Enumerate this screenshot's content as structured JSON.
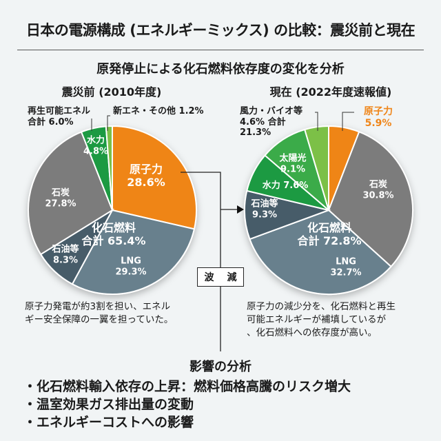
{
  "title": "日本の電源構成 (エネルギーミックス) の比較：震災前と現在",
  "subtitle": "原発停止による化石燃料依存度の変化を分析",
  "connector_label": [
    "波",
    "減"
  ],
  "chart_data": [
    {
      "type": "pie",
      "title": "震災前 (2010年度)",
      "slices": [
        {
          "name": "原子力",
          "value": 28.6,
          "color": "#ef8519"
        },
        {
          "name": "LNG",
          "value": 29.3,
          "color": "#68808d"
        },
        {
          "name": "石油等",
          "value": 8.3,
          "color": "#465b69"
        },
        {
          "name": "石炭",
          "value": 27.8,
          "color": "#7b7b7b"
        },
        {
          "name": "水力",
          "value": 4.8,
          "color": "#1f9a42"
        },
        {
          "name": "新エネ・その他",
          "value": 1.2,
          "color": "#7cc046"
        }
      ],
      "annotations": {
        "fossil": "化石燃料",
        "fossil_total": "合計 65.4%",
        "renew": "再生可能エネル",
        "renew_total": "合計 6.0%",
        "new_energy": "新エネ・その他 1.2%"
      },
      "labels": {
        "nuclear": "原子力",
        "nuclear_v": "28.6%",
        "lng": "LNG",
        "lng_v": "29.3%",
        "oil": "石油等",
        "oil_v": "8.3%",
        "coal": "石炭",
        "coal_v": "27.8%",
        "hydro": "水力",
        "hydro_v": "4.8%"
      }
    },
    {
      "type": "pie",
      "title": "現在 (2022年度速報値)",
      "slices": [
        {
          "name": "原子力",
          "value": 5.9,
          "color": "#ef8519"
        },
        {
          "name": "石炭",
          "value": 30.8,
          "color": "#7b7b7b"
        },
        {
          "name": "LNG",
          "value": 32.7,
          "color": "#68808d"
        },
        {
          "name": "石油等",
          "value": 9.3,
          "color": "#465b69"
        },
        {
          "name": "水力",
          "value": 7.6,
          "color": "#1f9a42"
        },
        {
          "name": "太陽光",
          "value": 9.1,
          "color": "#3aab48"
        },
        {
          "name": "風力・バイオ等",
          "value": 4.6,
          "color": "#7cc046"
        }
      ],
      "annotations": {
        "fossil": "化石燃料",
        "fossil_total": "合計 72.8%",
        "wind": "風力・バイオ等",
        "wind_total": "4.6% 合計",
        "renew_total": "21.3%"
      },
      "labels": {
        "nuclear": "原子力",
        "nuclear_v": "5.9%",
        "coal": "石炭",
        "coal_v": "30.8%",
        "lng": "LNG",
        "lng_v": "32.7%",
        "oil": "石油等",
        "oil_v": "9.3%",
        "hydro": "水力 7.6%",
        "solar": "太陽光",
        "solar_v": "9.1%"
      }
    }
  ],
  "notes": {
    "left": [
      "原子力発電が約3割を担い、エネル",
      "ギー安全保障の一翼を担っていた。"
    ],
    "right": [
      "原子力の減少分を、化石燃料と再生",
      "可能エネルギーが補填しているが",
      "、化石燃料への依存度が高い。"
    ]
  },
  "impact": {
    "title": "影響の分析",
    "items": [
      "・化石燃料輸入依存の上昇：燃料価格高騰のリスク増大",
      "・温室効果ガス排出量の変動",
      "・エネルギーコストへの影響"
    ]
  }
}
